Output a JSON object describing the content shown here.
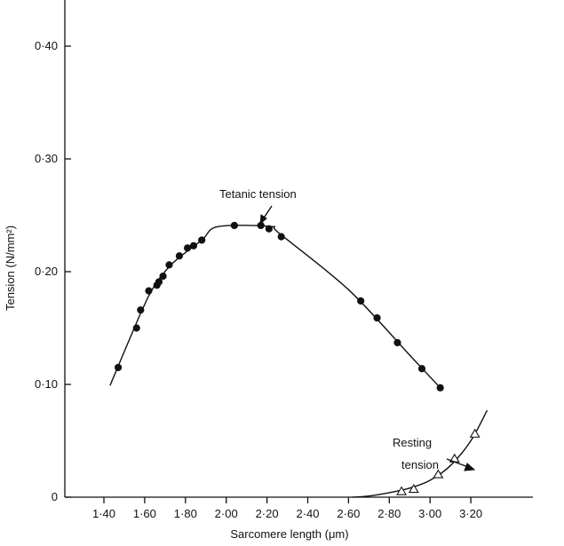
{
  "chart_data": {
    "type": "scatter",
    "xlabel": "Sarcomere length (μm)",
    "ylabel": "Tension (N/mm²)",
    "xlim": [
      1.4,
      3.3
    ],
    "ylim": [
      0,
      0.44
    ],
    "x_ticks": [
      1.4,
      1.6,
      1.8,
      2.0,
      2.2,
      2.4,
      2.6,
      2.8,
      3.0,
      3.2
    ],
    "x_tick_labels": [
      "1·40",
      "1·60",
      "1·80",
      "2·00",
      "2·20",
      "2·40",
      "2·60",
      "2·80",
      "3·00",
      "3·20"
    ],
    "y_ticks": [
      0,
      0.1,
      0.2,
      0.3,
      0.4
    ],
    "y_tick_labels": [
      "0",
      "0·10",
      "0·20",
      "0·30",
      "0·40"
    ],
    "grid": false,
    "legend": "none",
    "series": [
      {
        "name": "Tetanic tension",
        "marker": "filled-circle",
        "points": [
          [
            1.47,
            0.115
          ],
          [
            1.56,
            0.15
          ],
          [
            1.58,
            0.166
          ],
          [
            1.62,
            0.183
          ],
          [
            1.66,
            0.188
          ],
          [
            1.67,
            0.191
          ],
          [
            1.69,
            0.196
          ],
          [
            1.72,
            0.206
          ],
          [
            1.77,
            0.214
          ],
          [
            1.81,
            0.221
          ],
          [
            1.84,
            0.223
          ],
          [
            1.88,
            0.228
          ],
          [
            2.04,
            0.241
          ],
          [
            2.17,
            0.241
          ],
          [
            2.21,
            0.238
          ],
          [
            2.27,
            0.231
          ],
          [
            2.66,
            0.174
          ],
          [
            2.74,
            0.159
          ],
          [
            2.84,
            0.137
          ],
          [
            2.96,
            0.114
          ],
          [
            3.05,
            0.097
          ]
        ],
        "curve": [
          [
            1.43,
            0.099
          ],
          [
            1.58,
            0.163
          ],
          [
            1.65,
            0.188
          ],
          [
            1.74,
            0.208
          ],
          [
            1.88,
            0.228
          ],
          [
            1.96,
            0.24
          ],
          [
            2.22,
            0.24
          ],
          [
            2.26,
            0.234
          ],
          [
            2.6,
            0.184
          ],
          [
            2.9,
            0.126
          ],
          [
            3.05,
            0.097
          ]
        ]
      },
      {
        "name": "Resting tension",
        "marker": "open-triangle",
        "points": [
          [
            2.86,
            0.005
          ],
          [
            2.92,
            0.007
          ],
          [
            3.04,
            0.02
          ],
          [
            3.12,
            0.034
          ],
          [
            3.22,
            0.056
          ]
        ],
        "curve": [
          [
            2.62,
            0.0
          ],
          [
            2.7,
            0.001
          ],
          [
            2.8,
            0.004
          ],
          [
            2.9,
            0.008
          ],
          [
            3.0,
            0.015
          ],
          [
            3.1,
            0.028
          ],
          [
            3.2,
            0.05
          ],
          [
            3.28,
            0.077
          ]
        ]
      }
    ],
    "annotations": [
      {
        "text": "Tetanic tension",
        "lines": [
          "Tetanic tension"
        ]
      },
      {
        "text": "Resting tension",
        "lines": [
          "Resting",
          "tension"
        ]
      }
    ]
  }
}
